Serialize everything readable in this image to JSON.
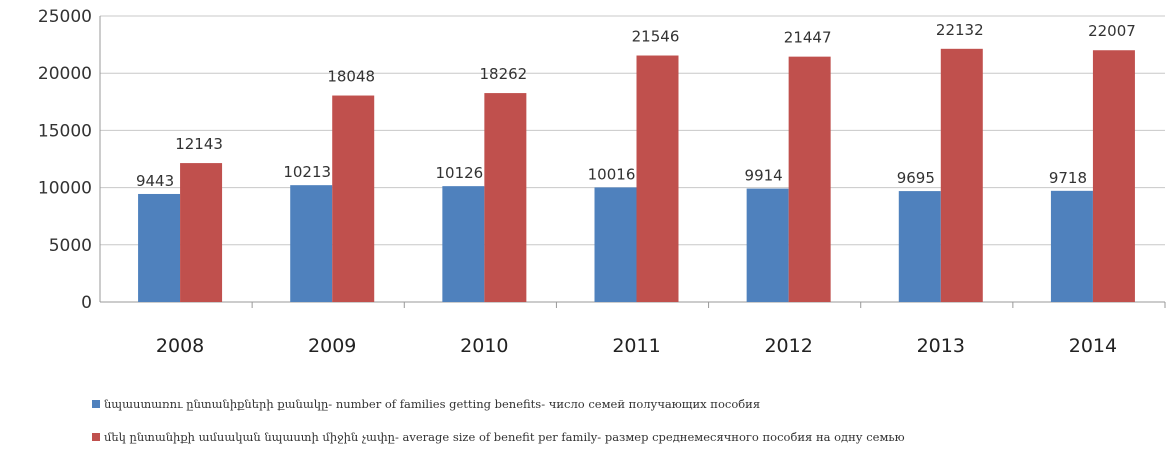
{
  "chart_data": {
    "type": "bar",
    "categories": [
      "2008",
      "2009",
      "2010",
      "2011",
      "2012",
      "2013",
      "2014"
    ],
    "series": [
      {
        "name": "նպաստառու ընտանիքների քանակը- number of families getting benefits- число семей получающих пособия",
        "color": "#4F81BD",
        "values": [
          9443,
          10213,
          10126,
          10016,
          9914,
          9695,
          9718
        ]
      },
      {
        "name": "մեկ ընտանիքի ամսական նպաստի միջին չափը- average size of benefit per family- размер среднемесячного пособия на одну семью",
        "color": "#C0504D",
        "values": [
          12143,
          18048,
          18262,
          21546,
          21447,
          22132,
          22007
        ]
      }
    ],
    "ylim": [
      0,
      25000
    ],
    "yticks": [
      "0",
      "5000",
      "10000",
      "15000",
      "20000",
      "25000"
    ],
    "grid": true,
    "legend_position": "bottom"
  }
}
